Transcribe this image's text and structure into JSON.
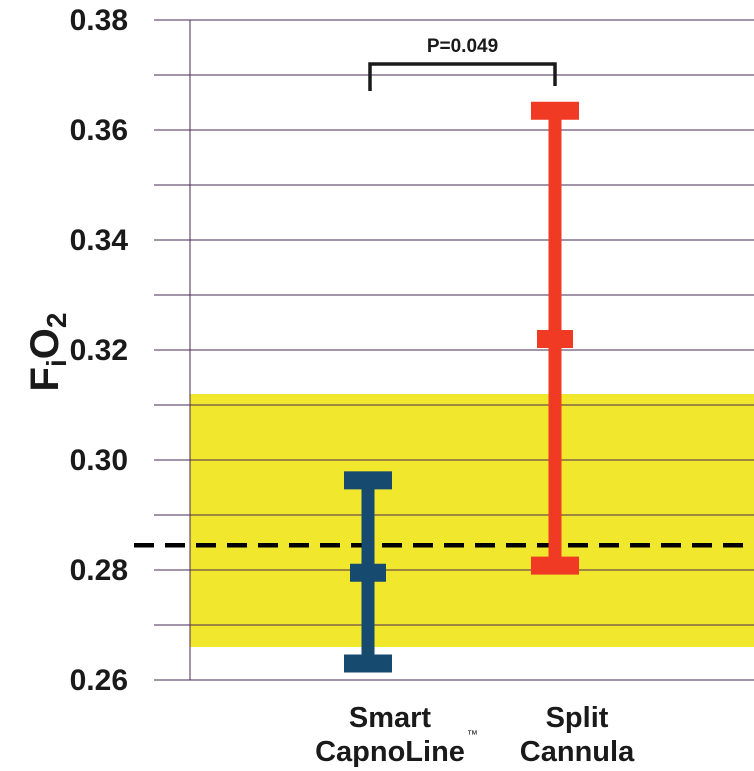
{
  "chart_data": {
    "type": "range",
    "ylabel": {
      "main": "F",
      "sub_i": "i",
      "o2": "O",
      "sub_2": "2"
    },
    "ylim": [
      0.26,
      0.38
    ],
    "yticks": [
      "0.26",
      "0.28",
      "0.30",
      "0.32",
      "0.34",
      "0.36",
      "0.38"
    ],
    "ytick_values": [
      0.26,
      0.28,
      0.3,
      0.32,
      0.34,
      0.36,
      0.38
    ],
    "minor_gridlines": [
      0.27,
      0.29,
      0.31,
      0.33,
      0.35,
      0.37
    ],
    "reference_band": {
      "from": 0.266,
      "to": 0.312,
      "color": "#f1e72c"
    },
    "reference_line": {
      "value": 0.2845,
      "style": "dashed",
      "color": "#000000"
    },
    "series": [
      {
        "category": [
          "Smart",
          "CapnoLine"
        ],
        "trademark": "™",
        "min": 0.263,
        "mid": 0.2795,
        "max": 0.2963,
        "color": "#164a6e"
      },
      {
        "category": [
          "Split",
          "Cannula"
        ],
        "trademark": "",
        "min": 0.2808,
        "mid": 0.322,
        "max": 0.3635,
        "color": "#f13a24"
      }
    ],
    "annotation": {
      "text": "P=0.049",
      "between": [
        0,
        1
      ]
    },
    "grid": true
  }
}
